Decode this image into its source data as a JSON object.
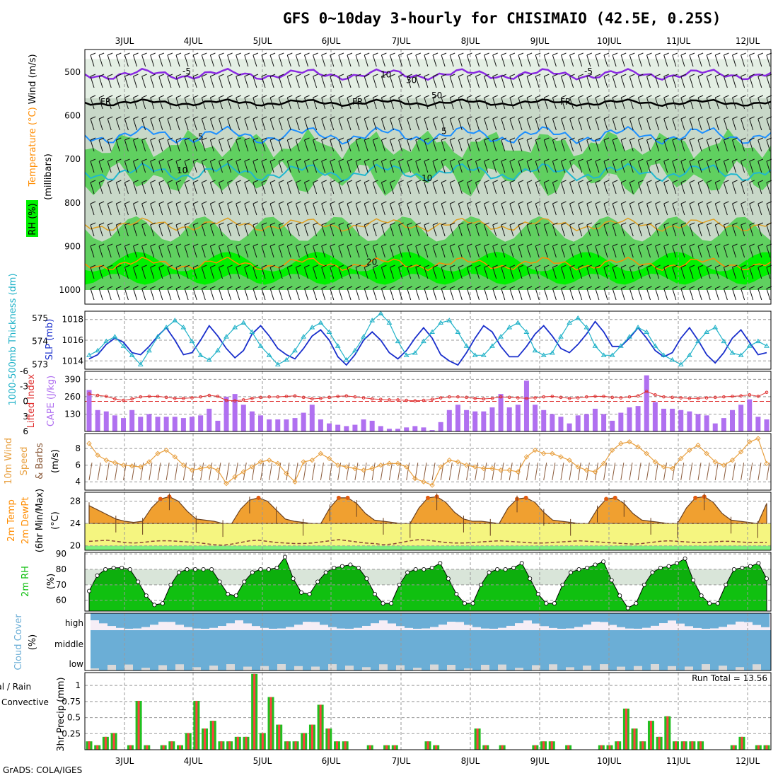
{
  "title": "GFS 0~10day 3-hourly for CHISIMAIO (42.5E, 0.25S)",
  "credit": "GrADS: COLA/IGES",
  "colors": {
    "rh_light": "#c8d8c8",
    "rh_mid": "#60d060",
    "rh_bright": "#00f000",
    "freezing": "#000000",
    "temp_neg": "#8a2be2",
    "temp_cyan": "#1e90ff",
    "temp_orange": "#ff8c00",
    "slp": "#1a2fcc",
    "thickness": "#20b2c8",
    "lifted": "#e03030",
    "cape": "#b070f0",
    "wind10": "#e8a040",
    "temp_fill": "#f0a030",
    "dewpt_fill": "#f5f580",
    "rh2m": "#10c010",
    "cloud": "#6baed6",
    "precip_total": "#20c020",
    "precip_conv": "#ff4040"
  },
  "chart_data": [
    {
      "type": "heatmap",
      "panel": "upper-air",
      "x_tick_labels": [
        "3JUL",
        "4JUL",
        "5JUL",
        "6JUL",
        "7JUL",
        "8JUL",
        "9JUL",
        "10JUL",
        "11JUL",
        "12JUL"
      ],
      "ylabel": "(millibars)",
      "yticks": [
        500,
        600,
        700,
        800,
        900,
        1000
      ],
      "legend_temperature": "Temperature (°C)",
      "legend_wind": "Wind (m/s)",
      "legend_rh": "RH (%)",
      "contour_labels": [
        "-5",
        "FR",
        "5",
        "10",
        "20",
        "10",
        "30",
        "50"
      ],
      "freezing_level_mb": 570,
      "isotherm_minus5_mb": 505,
      "isotherm_5_mb": 645,
      "isotherm_10_mb": 730,
      "isotherm_15_mb": 850,
      "isotherm_20_mb": 940
    },
    {
      "type": "line",
      "panel": "slp-thickness",
      "ylabel_left": "1000-500mb Thickness (dm)",
      "ylabel_right": "SLP (mb)",
      "yticks_left": [
        573,
        574,
        575
      ],
      "yticks_right": [
        1014,
        1016,
        1018
      ],
      "ylim_left": [
        572.8,
        575.3
      ],
      "ylim_right": [
        1013.2,
        1018.8
      ],
      "series": [
        {
          "name": "SLP (mb)",
          "axis": "right",
          "values": [
            1014.2,
            1014.6,
            1015.6,
            1016.2,
            1015.8,
            1014.8,
            1014.6,
            1015.4,
            1016.4,
            1017.2,
            1016.0,
            1014.6,
            1014.8,
            1016.0,
            1017.4,
            1016.4,
            1015.2,
            1014.3,
            1015.0,
            1016.6,
            1017.4,
            1016.4,
            1015.2,
            1014.6,
            1014.2,
            1015.2,
            1016.4,
            1017.0,
            1016.0,
            1014.4,
            1013.6,
            1014.6,
            1016.0,
            1016.8,
            1016.0,
            1014.8,
            1014.2,
            1015.0,
            1016.2,
            1017.2,
            1016.2,
            1014.6,
            1014.0,
            1013.6,
            1014.8,
            1016.2,
            1017.4,
            1016.8,
            1015.4,
            1014.4,
            1014.4,
            1015.4,
            1016.6,
            1017.4,
            1016.4,
            1015.2,
            1014.8,
            1015.6,
            1016.6,
            1017.8,
            1016.8,
            1015.4,
            1015.4,
            1016.2,
            1017.2,
            1016.2,
            1015.0,
            1014.4,
            1014.8,
            1016.2,
            1017.2,
            1016.0,
            1014.6,
            1013.8,
            1014.8,
            1016.2,
            1017.0,
            1015.8,
            1014.6,
            1014.8
          ]
        },
        {
          "name": "Thickness (dm)",
          "axis": "left",
          "values": [
            573.4,
            573.6,
            574.0,
            574.2,
            573.8,
            573.4,
            573.0,
            573.6,
            574.2,
            574.6,
            574.9,
            574.6,
            574.0,
            573.4,
            573.2,
            573.6,
            574.2,
            574.6,
            574.8,
            574.4,
            573.8,
            573.4,
            573.0,
            573.2,
            573.6,
            574.2,
            574.6,
            574.8,
            574.4,
            573.8,
            573.2,
            573.6,
            574.2,
            574.9,
            575.2,
            574.8,
            574.0,
            573.4,
            573.5,
            574.0,
            574.4,
            574.8,
            574.9,
            574.4,
            573.8,
            573.4,
            573.4,
            573.8,
            574.2,
            574.6,
            574.8,
            574.4,
            573.6,
            573.4,
            573.5,
            574.2,
            574.8,
            575.0,
            574.6,
            573.8,
            573.4,
            573.4,
            573.8,
            574.2,
            574.6,
            574.4,
            573.8,
            573.4,
            573.2,
            573.0,
            573.4,
            574.0,
            574.4,
            574.6,
            574.0,
            573.5,
            573.4,
            573.8,
            574.0,
            573.8
          ]
        }
      ]
    },
    {
      "type": "bar",
      "panel": "cape-li",
      "ylabel_left": "Lifted Index",
      "ylabel_right": "CAPE (J/kg)",
      "yticks_left": [
        "-6",
        "-3",
        "0",
        "3",
        "6"
      ],
      "yticks_right": [
        130,
        260,
        390
      ],
      "series": [
        {
          "name": "CAPE (J/kg)",
          "values": [
            310,
            160,
            150,
            120,
            100,
            160,
            110,
            130,
            110,
            110,
            110,
            100,
            110,
            120,
            170,
            80,
            260,
            280,
            200,
            150,
            120,
            90,
            90,
            90,
            100,
            140,
            200,
            90,
            60,
            50,
            40,
            50,
            90,
            80,
            40,
            20,
            20,
            30,
            40,
            30,
            10,
            70,
            160,
            200,
            160,
            150,
            150,
            180,
            280,
            180,
            200,
            380,
            200,
            160,
            130,
            110,
            60,
            120,
            130,
            170,
            130,
            80,
            140,
            180,
            190,
            420,
            220,
            170,
            170,
            160,
            150,
            130,
            120,
            60,
            100,
            160,
            200,
            240,
            110,
            90
          ]
        },
        {
          "name": "Lifted Index",
          "values": [
            -1.5,
            -1.2,
            -1.0,
            -0.5,
            -0.2,
            -0.5,
            -0.9,
            -1.0,
            -1.0,
            -0.8,
            -0.6,
            -0.6,
            -0.7,
            -0.9,
            -1.2,
            -1.0,
            -0.2,
            -0.1,
            -0.3,
            -0.6,
            -0.8,
            -0.9,
            -0.9,
            -1.0,
            -1.1,
            -0.8,
            -0.5,
            -0.6,
            -0.8,
            -1.0,
            -1.1,
            -0.9,
            -0.7,
            -0.5,
            -0.4,
            -0.3,
            -0.3,
            -0.2,
            -0.1,
            -0.2,
            -0.4,
            -0.7,
            -0.9,
            -0.9,
            -0.8,
            -0.6,
            -0.5,
            -0.6,
            -0.9,
            -0.8,
            -0.7,
            -0.6,
            -0.7,
            -0.9,
            -1.0,
            -0.8,
            -0.6,
            -0.7,
            -0.9,
            -1.0,
            -1.0,
            -0.8,
            -0.7,
            -0.9,
            -1.1,
            -2.0,
            -1.3,
            -0.9,
            -0.8,
            -0.7,
            -0.6,
            -0.6,
            -0.7,
            -0.8,
            -0.9,
            -1.0,
            -1.1,
            -1.3,
            -1.0,
            -1.8
          ]
        }
      ]
    },
    {
      "type": "line",
      "panel": "wind10m",
      "ylabel": "10m Wind Speed & Barbs (m/s)",
      "yticks": [
        4,
        6,
        8
      ],
      "ylim": [
        3,
        9.8
      ],
      "series": [
        {
          "name": "10m Wind Speed",
          "values": [
            8.6,
            7.2,
            6.6,
            6.3,
            6.0,
            5.9,
            5.8,
            6.4,
            7.4,
            7.8,
            7.0,
            6.0,
            5.4,
            5.6,
            5.8,
            5.4,
            3.8,
            4.6,
            5.2,
            5.8,
            6.4,
            6.6,
            6.2,
            5.0,
            4.0,
            6.4,
            6.6,
            7.4,
            6.8,
            6.0,
            5.8,
            5.6,
            5.4,
            5.6,
            6.0,
            6.2,
            6.2,
            5.8,
            4.4,
            4.0,
            3.6,
            5.8,
            6.6,
            6.4,
            6.0,
            5.8,
            5.6,
            5.6,
            5.4,
            5.4,
            5.2,
            7.0,
            7.8,
            7.4,
            7.4,
            7.0,
            6.6,
            5.8,
            5.4,
            5.2,
            6.2,
            7.8,
            8.6,
            8.8,
            8.2,
            7.4,
            6.4,
            5.8,
            5.6,
            6.8,
            7.8,
            8.4,
            7.4,
            6.4,
            6.0,
            6.6,
            7.6,
            8.8,
            9.2,
            6.2
          ]
        }
      ]
    },
    {
      "type": "area",
      "panel": "temp2m",
      "ylabel": "2m Temp 2m DewPt (6hr Min/Max) (°C)",
      "yticks": [
        20,
        24,
        28
      ],
      "ylim": [
        19.2,
        29.6
      ],
      "series": [
        {
          "name": "2m Temp",
          "values": [
            27.2,
            26.4,
            25.6,
            24.8,
            24.4,
            24.2,
            24.4,
            26.8,
            28.4,
            28.8,
            28.0,
            26.2,
            24.8,
            24.6,
            24.4,
            24.0,
            23.6,
            26.6,
            28.2,
            28.6,
            28.0,
            26.4,
            24.8,
            24.4,
            24.2,
            24.0,
            23.8,
            26.8,
            28.6,
            28.6,
            27.6,
            25.8,
            24.6,
            24.4,
            24.2,
            24.0,
            23.8,
            26.8,
            28.6,
            28.8,
            27.8,
            26.0,
            24.8,
            24.4,
            24.4,
            24.2,
            24.0,
            26.8,
            28.4,
            28.6,
            27.8,
            26.0,
            24.6,
            24.4,
            24.2,
            24.0,
            23.8,
            26.6,
            28.4,
            28.6,
            27.6,
            25.8,
            24.6,
            24.4,
            24.2,
            24.0,
            23.8,
            26.8,
            28.6,
            28.8,
            27.8,
            25.8,
            24.6,
            24.4,
            24.2,
            23.8,
            27.6
          ]
        },
        {
          "name": "2m DewPt",
          "values": [
            20.8,
            20.9,
            21.0,
            20.8,
            20.6,
            20.5,
            20.6,
            20.8,
            20.9,
            20.9,
            20.8,
            20.7,
            20.6,
            20.4,
            20.2,
            20.1,
            20.3,
            20.6,
            20.9,
            21.0,
            20.8,
            20.6,
            20.5,
            20.4,
            20.4,
            20.5,
            20.7,
            20.9,
            21.1,
            20.9,
            20.7,
            20.5,
            20.4,
            20.2,
            20.3,
            20.6,
            20.9,
            21.1,
            21.0,
            20.8,
            20.6,
            20.5,
            20.5,
            20.6,
            20.7,
            20.8,
            20.9,
            20.8,
            20.7,
            20.6,
            20.5,
            20.5,
            20.6,
            20.7,
            20.8,
            20.9,
            20.8,
            20.7,
            20.6,
            20.5,
            20.4,
            20.3,
            20.4,
            20.6,
            20.8,
            20.9,
            20.8,
            20.7,
            20.6,
            20.6,
            20.7,
            20.8,
            20.8,
            20.7,
            20.6,
            20.6,
            20.6
          ]
        }
      ]
    },
    {
      "type": "area",
      "panel": "rh2m",
      "ylabel": "2m RH (%)",
      "yticks": [
        60,
        70,
        80,
        90
      ],
      "ylim": [
        53,
        91
      ],
      "series": [
        {
          "name": "2m RH",
          "values": [
            66,
            76,
            80,
            81,
            81,
            80,
            72,
            63,
            57,
            58,
            70,
            78,
            80,
            80,
            80,
            80,
            72,
            64,
            63,
            72,
            78,
            80,
            80,
            81,
            88,
            74,
            65,
            64,
            72,
            78,
            81,
            82,
            83,
            81,
            74,
            64,
            58,
            58,
            70,
            78,
            80,
            80,
            81,
            84,
            74,
            64,
            58,
            58,
            70,
            78,
            80,
            80,
            81,
            84,
            74,
            64,
            58,
            58,
            70,
            78,
            80,
            81,
            83,
            85,
            73,
            63,
            55,
            58,
            70,
            78,
            81,
            82,
            84,
            87,
            73,
            63,
            58,
            58,
            70,
            80,
            81,
            82,
            84,
            74
          ]
        }
      ]
    },
    {
      "type": "area",
      "panel": "cloud",
      "ylabel": "Cloud Cover (%)",
      "row_labels": [
        "high",
        "middle",
        "low"
      ]
    },
    {
      "type": "bar",
      "panel": "precip",
      "ylabel": "3hr Precip (mm)",
      "legend": [
        "Total / Rain",
        "Convective"
      ],
      "yticks": [
        "0.25",
        "0.5",
        "0.75",
        "1"
      ],
      "ylim": [
        0,
        1.2
      ],
      "run_total_label": "Run Total = 13.56",
      "values": [
        0.13,
        0.07,
        0.2,
        0.26,
        0,
        0.07,
        0.76,
        0.07,
        0,
        0.07,
        0.13,
        0.07,
        0.26,
        0.76,
        0.33,
        0.45,
        0.13,
        0.13,
        0.2,
        0.2,
        1.18,
        0.26,
        0.82,
        0.39,
        0.13,
        0.13,
        0.26,
        0.39,
        0.7,
        0.33,
        0.13,
        0.13,
        0,
        0,
        0.07,
        0,
        0.07,
        0.07,
        0,
        0,
        0,
        0.13,
        0.07,
        0,
        0,
        0,
        0,
        0.33,
        0.07,
        0,
        0.07,
        0,
        0,
        0,
        0.07,
        0.13,
        0.13,
        0,
        0.07,
        0,
        0,
        0,
        0.07,
        0.07,
        0.13,
        0.64,
        0.33,
        0.13,
        0.45,
        0.2,
        0.52,
        0.13,
        0.13,
        0.13,
        0.13,
        0,
        0,
        0,
        0.07,
        0.2,
        0,
        0.07,
        0.07
      ]
    }
  ]
}
